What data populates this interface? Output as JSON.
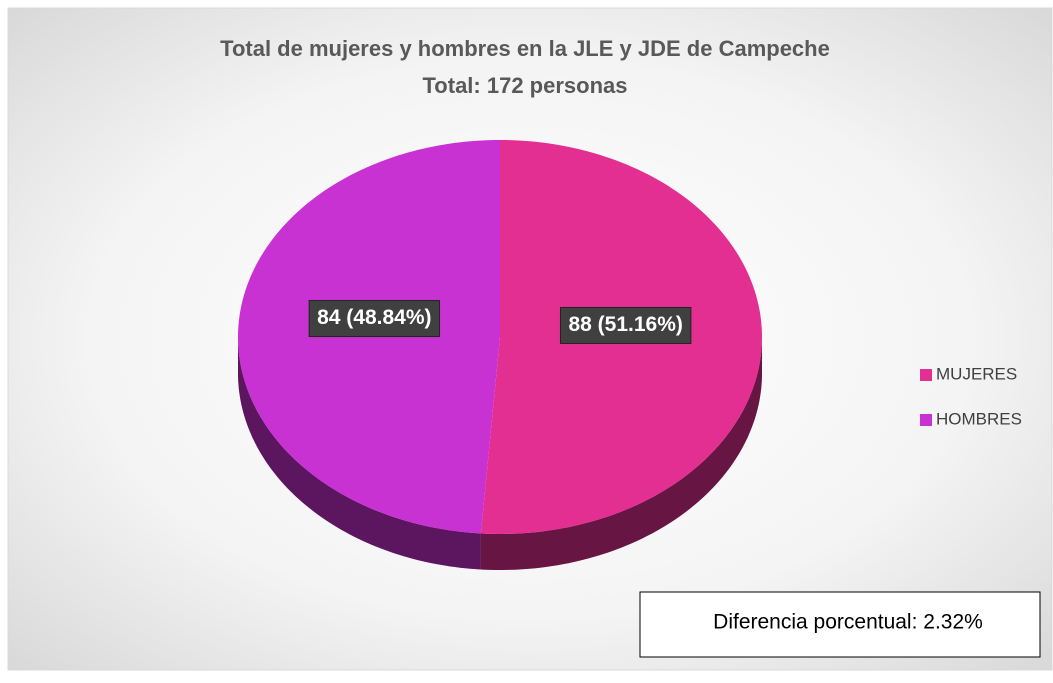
{
  "chart_data": {
    "type": "pie",
    "title": [
      "Total de mujeres y hombres en la JLE y JDE de Campeche",
      "Total: 172 personas"
    ],
    "categories": [
      "MUJERES",
      "HOMBRES"
    ],
    "values": [
      88,
      84
    ],
    "value_labels": [
      "88 (51.16%)",
      "84 (48.84%)"
    ],
    "colors": [
      "#e42f92",
      "#c932d2"
    ],
    "legend": "right",
    "annotation": "Diferencia porcentual: 2.32%"
  }
}
